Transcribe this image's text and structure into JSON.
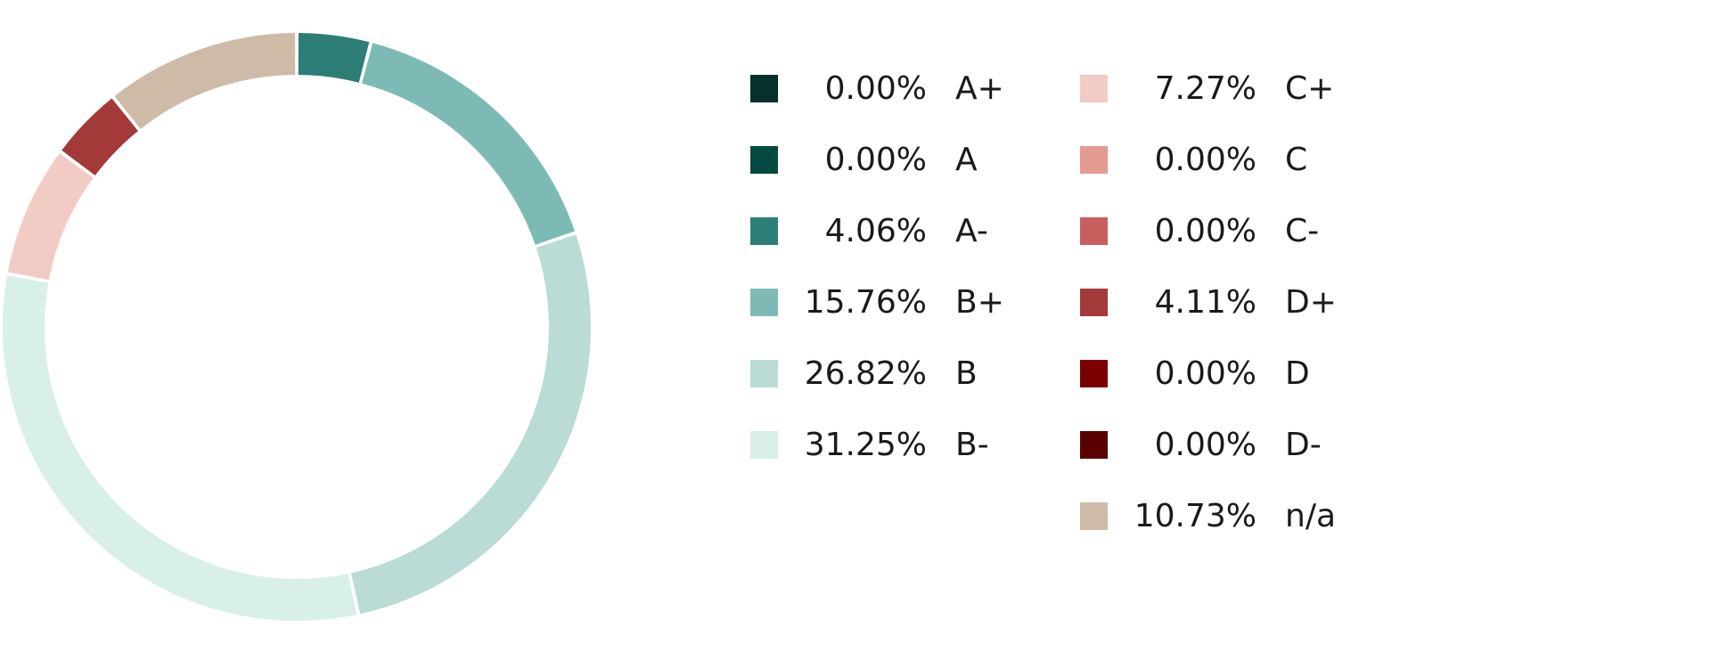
{
  "chart_data": {
    "type": "pie",
    "style": "donut",
    "legend_position": "right",
    "slices": [
      {
        "label": "A+",
        "value_text": "0.00%",
        "value": 0.0,
        "color": "#06302a"
      },
      {
        "label": "A",
        "value_text": "0.00%",
        "value": 0.0,
        "color": "#034a43"
      },
      {
        "label": "A-",
        "value_text": "4.06%",
        "value": 4.06,
        "color": "#2d7e76"
      },
      {
        "label": "B+",
        "value_text": "15.76%",
        "value": 15.76,
        "color": "#7ebab5"
      },
      {
        "label": "B",
        "value_text": "26.82%",
        "value": 26.82,
        "color": "#badbd6"
      },
      {
        "label": "B-",
        "value_text": "31.25%",
        "value": 31.25,
        "color": "#d9efe9"
      },
      {
        "label": "C+",
        "value_text": "7.27%",
        "value": 7.27,
        "color": "#f2cbc4"
      },
      {
        "label": "C",
        "value_text": "0.00%",
        "value": 0.0,
        "color": "#e49992"
      },
      {
        "label": "C-",
        "value_text": "0.00%",
        "value": 0.0,
        "color": "#c95e5e"
      },
      {
        "label": "D+",
        "value_text": "4.11%",
        "value": 4.11,
        "color": "#a33939"
      },
      {
        "label": "D",
        "value_text": "0.00%",
        "value": 0.0,
        "color": "#7b0000"
      },
      {
        "label": "D-",
        "value_text": "0.00%",
        "value": 0.0,
        "color": "#5b0000"
      },
      {
        "label": "n/a",
        "value_text": "10.73%",
        "value": 10.73,
        "color": "#cdbba8"
      }
    ]
  }
}
